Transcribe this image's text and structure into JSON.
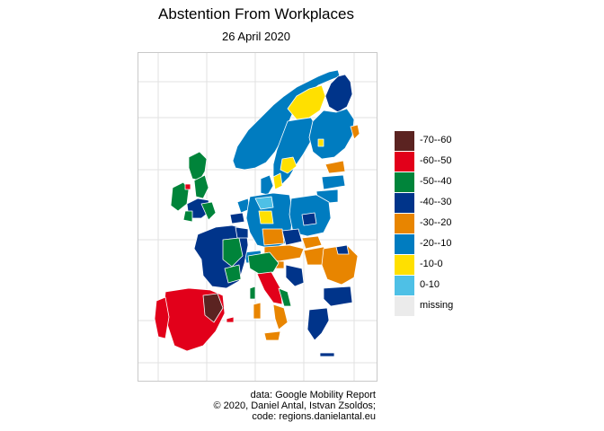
{
  "title": "Abstention From Workplaces",
  "subtitle": "26 April 2020",
  "legend": [
    {
      "label": "-70--60",
      "color": "#5b2321"
    },
    {
      "label": "-60--50",
      "color": "#e2001a"
    },
    {
      "label": "-50--40",
      "color": "#00843a"
    },
    {
      "label": "-40--30",
      "color": "#00348a"
    },
    {
      "label": "-30--20",
      "color": "#e88500"
    },
    {
      "label": "-20--10",
      "color": "#007cc0"
    },
    {
      "label": "-10-0",
      "color": "#ffe000"
    },
    {
      "label": "0-10",
      "color": "#4ec0e6"
    },
    {
      "label": "missing",
      "color": "#ebebeb"
    }
  ],
  "caption": {
    "line1": "data: Google Mobility Report",
    "line2": "© 2020, Daniel Antal, Istvan Zsoldos;",
    "line3": "code: regions.danielantal.eu"
  },
  "map": {
    "grid_lines": true,
    "region_border_color": "#ffffff",
    "grid_color": "#e0e0e0"
  }
}
